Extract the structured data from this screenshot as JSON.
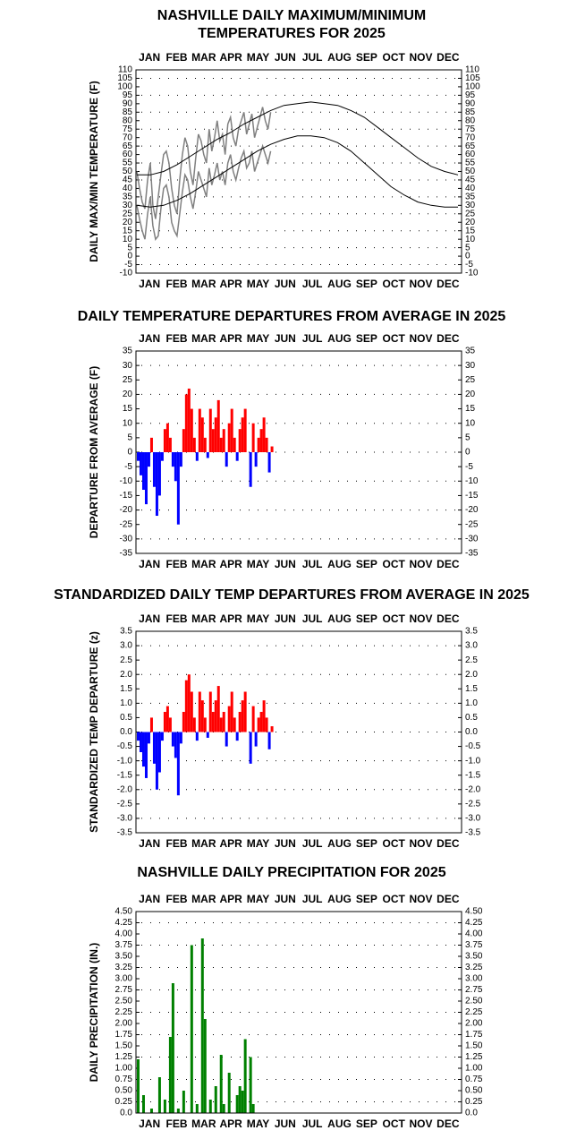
{
  "chart_data": [
    {
      "type": "line",
      "title": [
        "NASHVILLE DAILY MAXIMUM/MINIMUM",
        "TEMPERATURES FOR 2025"
      ],
      "ylabel": "DAILY MAX/MIN TEMPERATURE (F)",
      "categories": [
        "JAN",
        "FEB",
        "MAR",
        "APR",
        "MAY",
        "JUN",
        "JUL",
        "AUG",
        "SEP",
        "OCT",
        "NOV",
        "DEC"
      ],
      "xlim": [
        0,
        365
      ],
      "ylim": [
        -10,
        110
      ],
      "yticks": [
        110,
        105,
        100,
        95,
        90,
        85,
        80,
        75,
        70,
        65,
        60,
        55,
        50,
        45,
        40,
        35,
        30,
        25,
        20,
        15,
        10,
        5,
        0,
        -5,
        -10
      ],
      "grid": true,
      "series": [
        {
          "color": "#808080",
          "x": [
            1,
            4,
            7,
            10,
            13,
            16,
            19,
            22,
            25,
            28,
            31,
            34,
            37,
            40,
            43,
            46,
            49,
            52,
            55,
            58,
            61,
            64,
            67,
            70,
            73,
            76,
            79,
            82,
            85,
            88,
            91,
            94,
            97,
            100,
            103,
            106,
            109,
            112,
            115,
            118,
            121,
            124,
            127,
            130,
            133,
            136,
            139,
            142,
            145,
            148,
            151
          ],
          "values": [
            50,
            40,
            32,
            28,
            45,
            55,
            30,
            22,
            35,
            48,
            60,
            62,
            55,
            40,
            30,
            25,
            45,
            60,
            70,
            65,
            50,
            42,
            58,
            72,
            68,
            60,
            55,
            75,
            62,
            70,
            80,
            68,
            72,
            60,
            78,
            82,
            70,
            65,
            75,
            80,
            85,
            72,
            78,
            84,
            70,
            76,
            82,
            88,
            80,
            75,
            85
          ]
        },
        {
          "color": "#808080",
          "x": [
            1,
            4,
            7,
            10,
            13,
            16,
            19,
            22,
            25,
            28,
            31,
            34,
            37,
            40,
            43,
            46,
            49,
            52,
            55,
            58,
            61,
            64,
            67,
            70,
            73,
            76,
            79,
            82,
            85,
            88,
            91,
            94,
            97,
            100,
            103,
            106,
            109,
            112,
            115,
            118,
            121,
            124,
            127,
            130,
            133,
            136,
            139,
            142,
            145,
            148,
            151
          ],
          "values": [
            30,
            22,
            15,
            10,
            25,
            35,
            18,
            10,
            12,
            28,
            40,
            42,
            35,
            20,
            15,
            12,
            25,
            38,
            48,
            45,
            35,
            28,
            38,
            50,
            45,
            40,
            35,
            52,
            42,
            48,
            55,
            45,
            50,
            42,
            55,
            60,
            50,
            45,
            52,
            58,
            62,
            52,
            55,
            62,
            50,
            55,
            60,
            65,
            60,
            55,
            62
          ]
        },
        {
          "color": "#000000",
          "x": [
            1,
            16,
            31,
            46,
            61,
            76,
            91,
            106,
            121,
            136,
            151,
            166,
            181,
            196,
            211,
            226,
            241,
            256,
            271,
            286,
            301,
            316,
            331,
            346,
            361
          ],
          "values": [
            48,
            48,
            50,
            54,
            59,
            64,
            69,
            73,
            78,
            82,
            86,
            89,
            90,
            91,
            90,
            89,
            86,
            82,
            76,
            70,
            64,
            58,
            53,
            50,
            48
          ]
        },
        {
          "color": "#000000",
          "x": [
            1,
            16,
            31,
            46,
            61,
            76,
            91,
            106,
            121,
            136,
            151,
            166,
            181,
            196,
            211,
            226,
            241,
            256,
            271,
            286,
            301,
            316,
            331,
            346,
            361
          ],
          "values": [
            30,
            29,
            30,
            33,
            37,
            42,
            47,
            52,
            57,
            62,
            66,
            69,
            71,
            71,
            70,
            67,
            62,
            55,
            48,
            41,
            36,
            32,
            30,
            29,
            29
          ]
        }
      ]
    },
    {
      "type": "bar",
      "title": [
        "DAILY TEMPERATURE DEPARTURES FROM AVERAGE IN 2025"
      ],
      "ylabel": "DEPARTURE FROM AVERAGE (F)",
      "categories": [
        "JAN",
        "FEB",
        "MAR",
        "APR",
        "MAY",
        "JUN",
        "JUL",
        "AUG",
        "SEP",
        "OCT",
        "NOV",
        "DEC"
      ],
      "xlim": [
        0,
        365
      ],
      "ylim": [
        -35,
        35
      ],
      "yticks": [
        35,
        30,
        25,
        20,
        15,
        10,
        5,
        0,
        -5,
        -10,
        -15,
        -20,
        -25,
        -30,
        -35
      ],
      "grid": true,
      "color_above": "#ff0000",
      "color_below": "#0000ff",
      "x": [
        1,
        4,
        7,
        10,
        13,
        16,
        19,
        22,
        25,
        28,
        31,
        34,
        37,
        40,
        43,
        46,
        49,
        52,
        55,
        58,
        61,
        64,
        67,
        70,
        73,
        76,
        79,
        82,
        85,
        88,
        91,
        94,
        97,
        100,
        103,
        106,
        109,
        112,
        115,
        118,
        121,
        124,
        127,
        130,
        133,
        136,
        139,
        142,
        145,
        148,
        151
      ],
      "values": [
        -3,
        -8,
        -13,
        -18,
        -5,
        5,
        -12,
        -22,
        -15,
        -3,
        8,
        10,
        5,
        -5,
        -10,
        -25,
        -5,
        8,
        20,
        22,
        15,
        5,
        -3,
        15,
        12,
        5,
        -2,
        15,
        8,
        12,
        18,
        5,
        8,
        -5,
        10,
        15,
        5,
        -3,
        8,
        12,
        15,
        0,
        -12,
        10,
        -5,
        5,
        8,
        12,
        5,
        -7,
        2
      ]
    },
    {
      "type": "bar",
      "title": [
        "STANDARDIZED DAILY TEMP DEPARTURES FROM AVERAGE IN 2025"
      ],
      "ylabel": "STANDARDIZED TEMP DEPARTURE (z)",
      "categories": [
        "JAN",
        "FEB",
        "MAR",
        "APR",
        "MAY",
        "JUN",
        "JUL",
        "AUG",
        "SEP",
        "OCT",
        "NOV",
        "DEC"
      ],
      "xlim": [
        0,
        365
      ],
      "ylim": [
        -3.5,
        3.5
      ],
      "yticks": [
        3.5,
        {
          "value": 3,
          "label": "3.0"
        },
        2.5,
        {
          "value": 2,
          "label": "2.0"
        },
        1.5,
        {
          "value": 1,
          "label": "1.0"
        },
        0.5,
        {
          "value": 0,
          "label": "0.0"
        },
        -0.5,
        {
          "value": -1,
          "label": "-1.0"
        },
        -1.5,
        {
          "value": -2,
          "label": "-2.0"
        },
        -2.5,
        {
          "value": -3,
          "label": "-3.0"
        },
        -3.5
      ],
      "grid": true,
      "color_above": "#ff0000",
      "color_below": "#0000ff",
      "x": [
        1,
        4,
        7,
        10,
        13,
        16,
        19,
        22,
        25,
        28,
        31,
        34,
        37,
        40,
        43,
        46,
        49,
        52,
        55,
        58,
        61,
        64,
        67,
        70,
        73,
        76,
        79,
        82,
        85,
        88,
        91,
        94,
        97,
        100,
        103,
        106,
        109,
        112,
        115,
        118,
        121,
        124,
        127,
        130,
        133,
        136,
        139,
        142,
        145,
        148,
        151
      ],
      "values": [
        -0.3,
        -0.7,
        -1.2,
        -1.6,
        -0.4,
        0.5,
        -1.1,
        -2.0,
        -1.4,
        -0.3,
        0.7,
        0.9,
        0.5,
        -0.5,
        -0.9,
        -2.2,
        -0.4,
        0.7,
        1.8,
        2.0,
        1.4,
        0.5,
        -0.3,
        1.4,
        1.1,
        0.5,
        -0.2,
        1.4,
        0.7,
        1.1,
        1.6,
        0.5,
        0.7,
        -0.5,
        0.9,
        1.4,
        0.5,
        -0.3,
        0.7,
        1.1,
        1.4,
        0,
        -1.1,
        0.9,
        -0.5,
        0.5,
        0.7,
        1.1,
        0.5,
        -0.6,
        0.2
      ]
    },
    {
      "type": "bar",
      "title": [
        "NASHVILLE DAILY PRECIPITATION FOR 2025"
      ],
      "ylabel": "DAILY PRECIPITATION (IN.)",
      "categories": [
        "JAN",
        "FEB",
        "MAR",
        "APR",
        "MAY",
        "JUN",
        "JUL",
        "AUG",
        "SEP",
        "OCT",
        "NOV",
        "DEC"
      ],
      "xlim": [
        0,
        365
      ],
      "ylim": [
        0,
        4.5
      ],
      "yticks": [
        {
          "value": 4.5,
          "label": "4.50"
        },
        {
          "value": 4.25,
          "label": "4.25"
        },
        {
          "value": 4,
          "label": "4.00"
        },
        {
          "value": 3.75,
          "label": "3.75"
        },
        {
          "value": 3.5,
          "label": "3.50"
        },
        {
          "value": 3.25,
          "label": "3.25"
        },
        {
          "value": 3,
          "label": "3.00"
        },
        {
          "value": 2.75,
          "label": "2.75"
        },
        {
          "value": 2.5,
          "label": "2.50"
        },
        {
          "value": 2.25,
          "label": "2.25"
        },
        {
          "value": 2,
          "label": "2.00"
        },
        {
          "value": 1.75,
          "label": "1.75"
        },
        {
          "value": 1.5,
          "label": "1.50"
        },
        {
          "value": 1.25,
          "label": "1.25"
        },
        {
          "value": 1,
          "label": "1.00"
        },
        {
          "value": 0.75,
          "label": "0.75"
        },
        {
          "value": 0.5,
          "label": "0.50"
        },
        {
          "value": 0.25,
          "label": "0.25"
        },
        {
          "value": 0,
          "label": "0.0"
        }
      ],
      "grid": true,
      "color_above": "#008000",
      "color_below": "#008000",
      "x": [
        1,
        4,
        7,
        10,
        13,
        16,
        19,
        22,
        25,
        28,
        31,
        34,
        37,
        40,
        43,
        46,
        49,
        52,
        55,
        58,
        61,
        64,
        67,
        70,
        73,
        76,
        79,
        82,
        85,
        88,
        91,
        94,
        97,
        100,
        103,
        106,
        109,
        112,
        115,
        118,
        121,
        124,
        127,
        130,
        133,
        136,
        139,
        142,
        145,
        148,
        151
      ],
      "values": [
        1.2,
        0,
        0.4,
        0,
        0,
        0.1,
        0,
        0,
        0.8,
        0,
        0.3,
        0,
        1.7,
        2.9,
        0,
        0.1,
        0,
        0.5,
        0,
        0,
        3.75,
        0,
        0.2,
        0,
        3.9,
        2.1,
        0,
        0.3,
        0,
        0.6,
        0,
        1.3,
        0.2,
        0,
        0.9,
        0,
        0,
        0.4,
        0.6,
        0.5,
        1.65,
        0,
        1.25,
        0.2,
        0,
        0,
        0,
        0,
        0,
        0,
        0
      ]
    }
  ]
}
